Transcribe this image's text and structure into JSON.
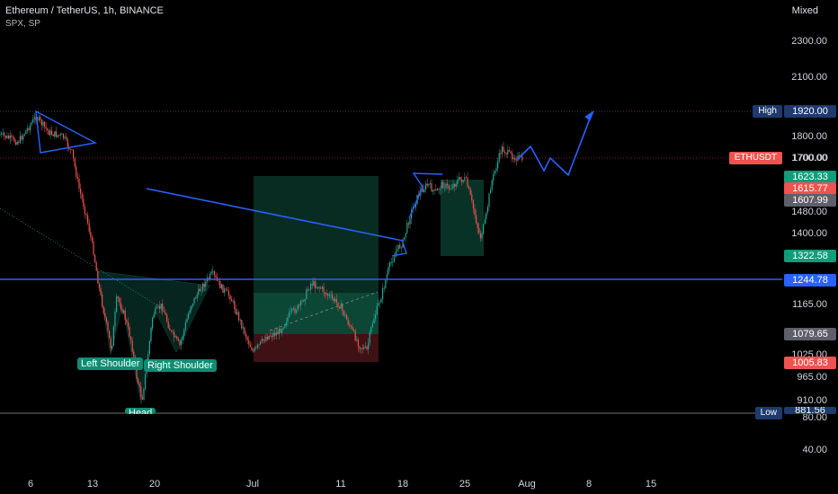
{
  "header": {
    "title": "Ethereum / TetherUS, 1h, BINANCE",
    "subtitle": "SPX, SP",
    "scale_mode": "Mixed"
  },
  "y_axis_labels": [
    "2300.00",
    "2100.00",
    "1800.00",
    "1700.00",
    "1480.00",
    "1400.00",
    "1165.00",
    "1025.00",
    "965.00",
    "910.00",
    "80.00",
    "40.00"
  ],
  "x_axis_labels": [
    "6",
    "13",
    "20",
    "Jul",
    "11",
    "18",
    "25",
    "Aug",
    "8",
    "15"
  ],
  "price_tags": {
    "high": {
      "label": "High",
      "value": "1920.00"
    },
    "ethusdt": {
      "label": "ETHUSDT",
      "value": "1700.00"
    },
    "p1623": "1623.33",
    "p1615": "1615.77",
    "p1607": "1607.99",
    "p1322": "1322.58",
    "p1244": "1244.78",
    "p1079": "1079.65",
    "p1005": "1005.83",
    "low": {
      "label": "Low",
      "value": "881.56"
    }
  },
  "annotations": {
    "left_shoulder": "Left Shoulder",
    "right_shoulder": "Right Shoulder",
    "head": "Head"
  },
  "colors": {
    "background": "#000000",
    "up": "#26a69a",
    "down": "#ef5350",
    "drawing": "#2962ff",
    "high_tag": "#1e3a6e",
    "ethusdt_tag": "#ef5350",
    "green_tag": "#0f9d7a",
    "grey_tag": "#5d606b"
  }
}
